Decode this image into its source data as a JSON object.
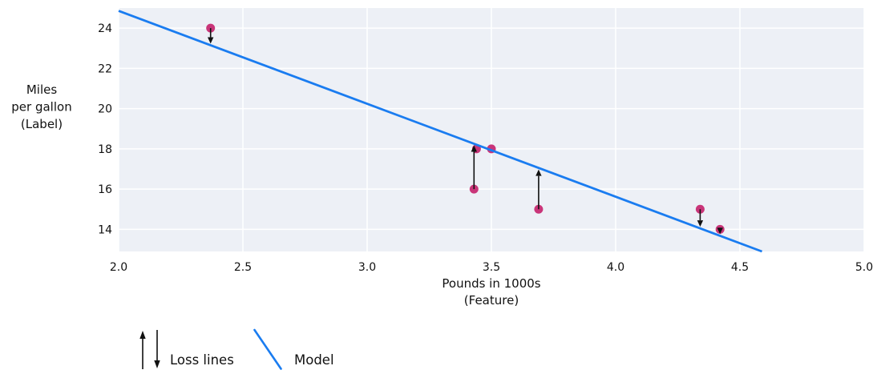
{
  "chart_data": {
    "type": "scatter",
    "title": "",
    "xlabel_lines": [
      "Pounds in 1000s",
      "(Feature)"
    ],
    "ylabel_lines": [
      "Miles",
      "per gallon",
      "(Label)"
    ],
    "x_ticks": [
      "2.0",
      "2.5",
      "3.0",
      "3.5",
      "4.0",
      "4.5",
      "5.0"
    ],
    "x_tick_values": [
      2.0,
      2.5,
      3.0,
      3.5,
      4.0,
      4.5,
      5.0
    ],
    "y_ticks": [
      "14",
      "16",
      "18",
      "20",
      "22",
      "24"
    ],
    "y_tick_values": [
      14,
      16,
      18,
      20,
      22,
      24
    ],
    "xlim": [
      2.0,
      5.0
    ],
    "ylim": [
      12.9,
      25.0
    ],
    "grid": true,
    "points": [
      {
        "x": 2.37,
        "y": 24,
        "loss_line": true
      },
      {
        "x": 3.43,
        "y": 16,
        "loss_line": true
      },
      {
        "x": 3.44,
        "y": 18,
        "loss_line": false
      },
      {
        "x": 3.5,
        "y": 18,
        "loss_line": false
      },
      {
        "x": 3.69,
        "y": 15,
        "loss_line": true
      },
      {
        "x": 4.34,
        "y": 15,
        "loss_line": true
      },
      {
        "x": 4.42,
        "y": 14,
        "loss_line": true
      }
    ],
    "model": {
      "intercept": 34.1,
      "slope": -4.62
    },
    "colors": {
      "model_line": "#1a7cf0",
      "point": "#c93579",
      "plot_bg": "#edf0f6",
      "grid": "#ffffff",
      "text": "#111111",
      "arrow": "#111111",
      "page_bg": "#ffffff"
    },
    "legend_position": "bottom-left"
  },
  "legend": {
    "loss_label": "Loss lines",
    "model_label": "Model"
  }
}
